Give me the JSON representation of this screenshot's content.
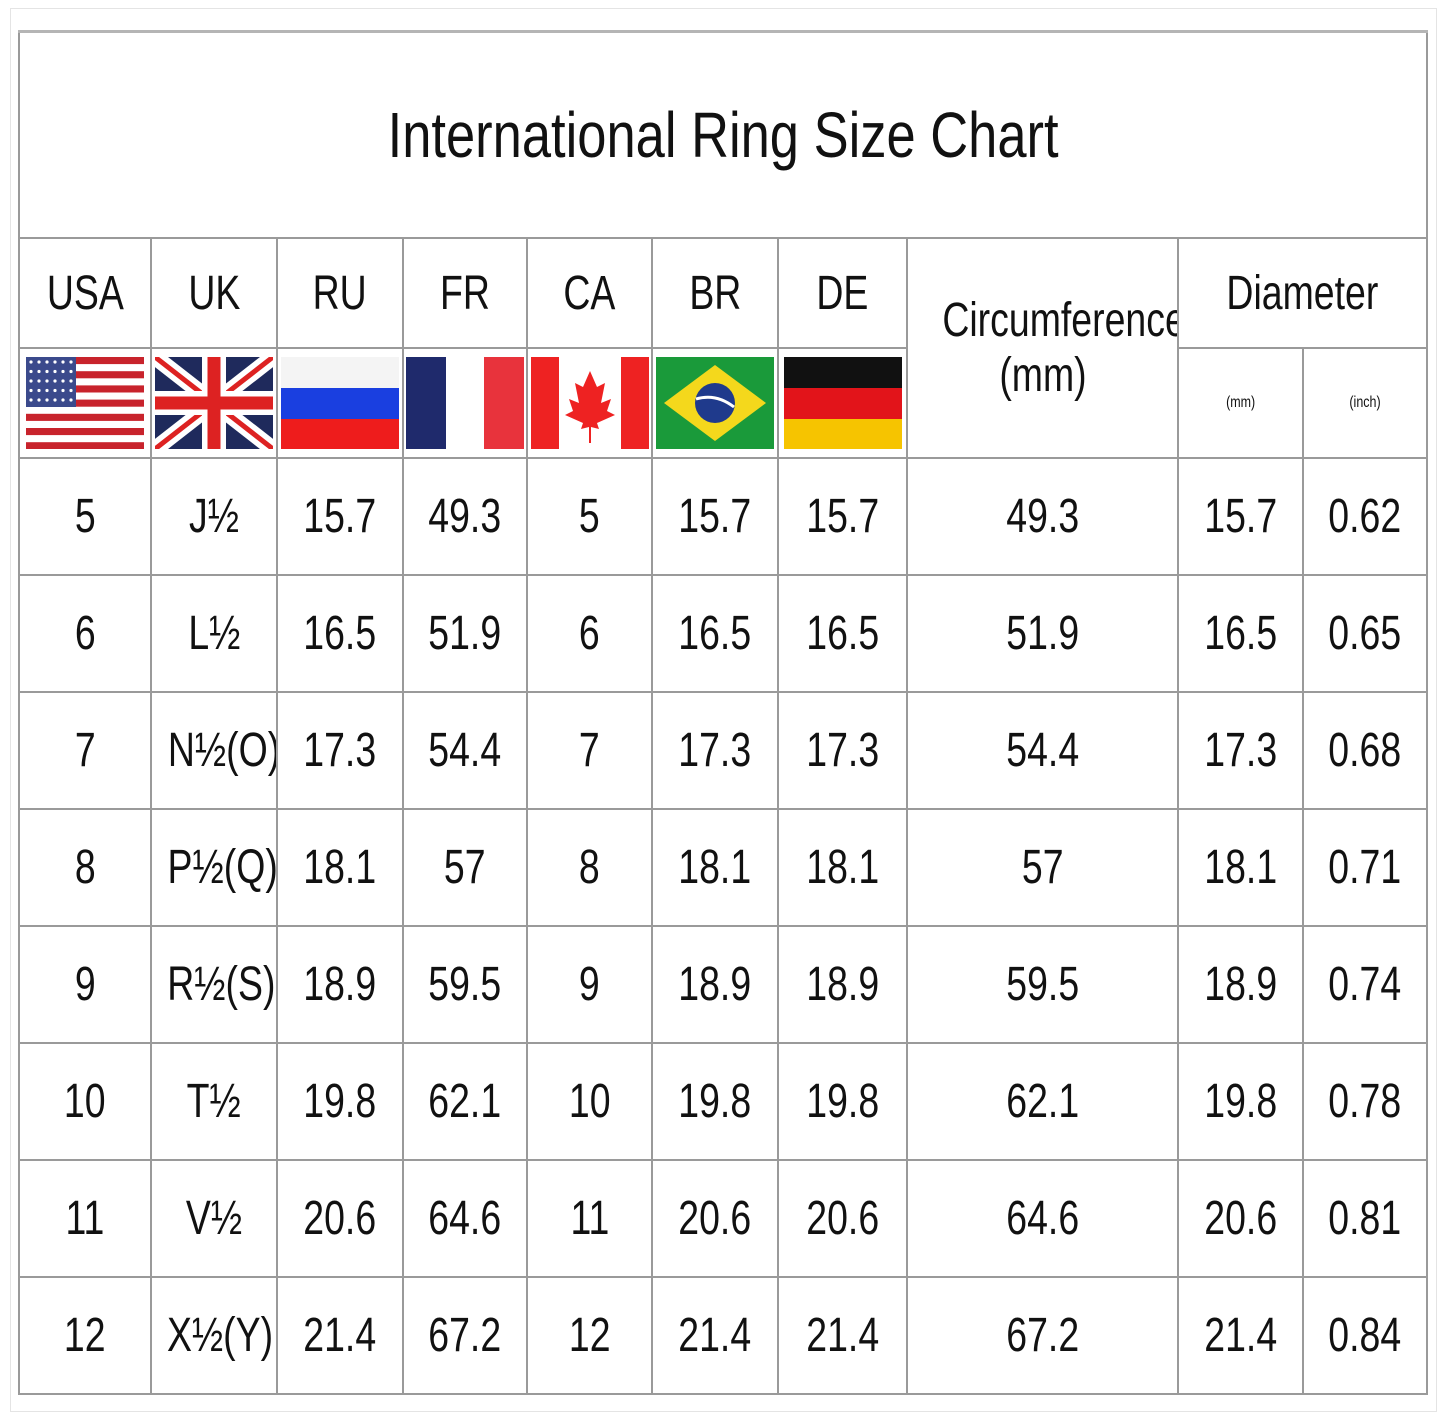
{
  "chart_data": {
    "type": "table",
    "title": "International Ring Size Chart",
    "columns": [
      "USA",
      "UK",
      "RU",
      "FR",
      "CA",
      "BR",
      "DE"
    ],
    "circumference_header": [
      "Circumference",
      "(mm)"
    ],
    "diameter_header": "Diameter",
    "diameter_subheaders": [
      "(mm)",
      "(inch)"
    ],
    "flags": [
      "us-flag-icon",
      "uk-flag-icon",
      "russia-flag-icon",
      "france-flag-icon",
      "canada-flag-icon",
      "brazil-flag-icon",
      "germany-flag-icon"
    ],
    "rows": [
      [
        "5",
        "J½",
        "15.7",
        "49.3",
        "5",
        "15.7",
        "15.7",
        "49.3",
        "15.7",
        "0.62"
      ],
      [
        "6",
        "L½",
        "16.5",
        "51.9",
        "6",
        "16.5",
        "16.5",
        "51.9",
        "16.5",
        "0.65"
      ],
      [
        "7",
        "N½(O)",
        "17.3",
        "54.4",
        "7",
        "17.3",
        "17.3",
        "54.4",
        "17.3",
        "0.68"
      ],
      [
        "8",
        "P½(Q)",
        "18.1",
        "57",
        "8",
        "18.1",
        "18.1",
        "57",
        "18.1",
        "0.71"
      ],
      [
        "9",
        "R½(S)",
        "18.9",
        "59.5",
        "9",
        "18.9",
        "18.9",
        "59.5",
        "18.9",
        "0.74"
      ],
      [
        "10",
        "T½",
        "19.8",
        "62.1",
        "10",
        "19.8",
        "19.8",
        "62.1",
        "19.8",
        "0.78"
      ],
      [
        "11",
        "V½",
        "20.6",
        "64.6",
        "11",
        "20.6",
        "20.6",
        "64.6",
        "20.6",
        "0.81"
      ],
      [
        "12",
        "X½(Y)",
        "21.4",
        "67.2",
        "12",
        "21.4",
        "21.4",
        "67.2",
        "21.4",
        "0.84"
      ]
    ]
  }
}
